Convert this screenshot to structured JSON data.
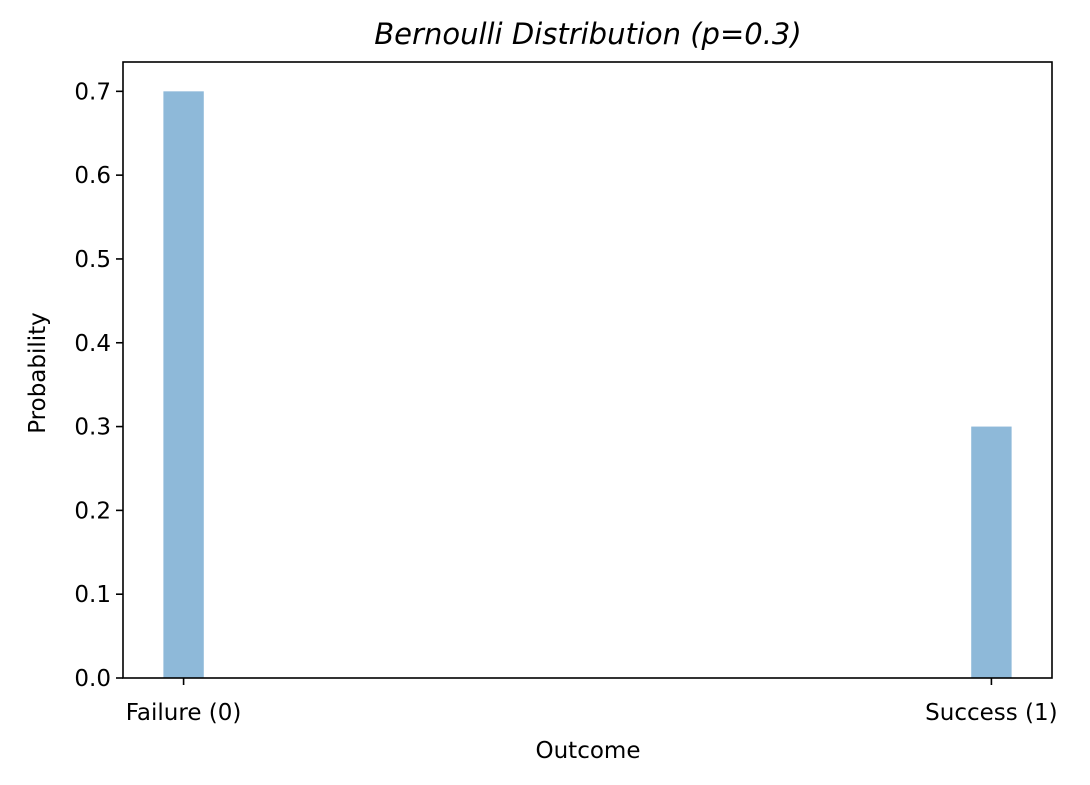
{
  "chart_data": {
    "type": "bar",
    "title": "Bernoulli Distribution (p=0.3)",
    "xlabel": "Outcome",
    "ylabel": "Probability",
    "categories": [
      "Failure (0)",
      "Success (1)"
    ],
    "values": [
      0.7,
      0.3
    ],
    "ylim": [
      0,
      0.735
    ],
    "yticks": [
      0.0,
      0.1,
      0.2,
      0.3,
      0.4,
      0.5,
      0.6,
      0.7
    ],
    "ytick_labels": [
      "0.0",
      "0.1",
      "0.2",
      "0.3",
      "0.4",
      "0.5",
      "0.6",
      "0.7"
    ],
    "xlim": [
      -0.075,
      1.075
    ],
    "bar_width": 0.05,
    "bar_color": "#8eb9d9",
    "grid": false,
    "legend": "none"
  }
}
